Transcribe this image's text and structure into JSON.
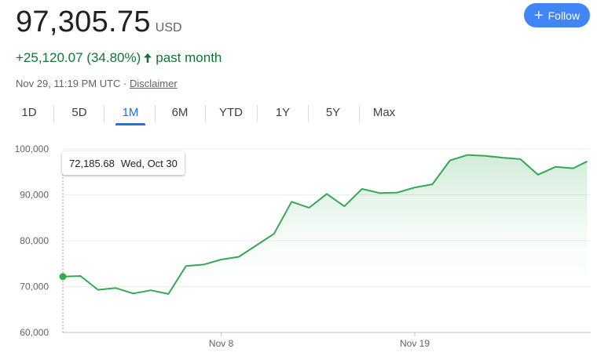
{
  "header": {
    "price": "97,305.75",
    "currency": "USD",
    "change": "+25,120.07 (34.80%)",
    "change_period": "past month",
    "timestamp": "Nov 29, 11:19 PM UTC · ",
    "disclaimer": "Disclaimer",
    "follow_label": "Follow",
    "positive_color": "#137333",
    "accent_color": "#1a73e8"
  },
  "tabs": [
    {
      "label": "1D"
    },
    {
      "label": "5D"
    },
    {
      "label": "1M",
      "active": true
    },
    {
      "label": "6M"
    },
    {
      "label": "YTD"
    },
    {
      "label": "1Y"
    },
    {
      "label": "5Y"
    },
    {
      "label": "Max"
    }
  ],
  "tooltip": {
    "value": "72,185.68",
    "date": "Wed, Oct 30"
  },
  "chart_data": {
    "type": "area",
    "title": "",
    "xlabel": "",
    "ylabel": "",
    "ylim": [
      60000,
      100000
    ],
    "yticks": [
      60000,
      70000,
      80000,
      90000,
      100000
    ],
    "ytick_labels": [
      "60,000",
      "70,000",
      "80,000",
      "90,000",
      "100,000"
    ],
    "xticks": [
      {
        "label": "Nov 8",
        "day": 8
      },
      {
        "label": "Nov 19",
        "day": 19
      }
    ],
    "x_start_day": -1,
    "x_end_day": 29,
    "line_color": "#34a853",
    "grid": true,
    "series": [
      {
        "x": [
          -1,
          0,
          1,
          2,
          3,
          4,
          5,
          6,
          7,
          8,
          9,
          10,
          11,
          12,
          13,
          14,
          15,
          16,
          17,
          18,
          19,
          20,
          21,
          22,
          23,
          24,
          25,
          26,
          27,
          28,
          28.8
        ],
        "values": [
          72185.68,
          72300,
          69300,
          69700,
          68500,
          69200,
          68400,
          74500,
          74800,
          75900,
          76500,
          79000,
          81500,
          88500,
          87200,
          90200,
          87500,
          91300,
          90400,
          90500,
          91600,
          92300,
          97500,
          98700,
          98500,
          98100,
          97800,
          94400,
          96100,
          95800,
          97305.75
        ]
      }
    ]
  }
}
